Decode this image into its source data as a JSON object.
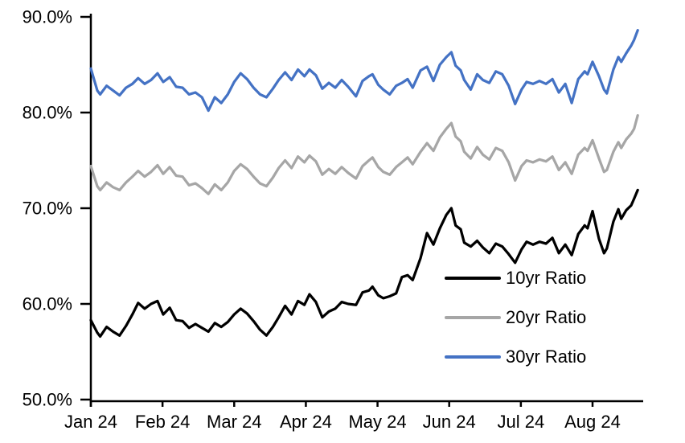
{
  "chart": {
    "background_color": "#ffffff",
    "axis_color": "#000000",
    "text_color": "#000000"
  },
  "chart_data": {
    "type": "line",
    "title": "",
    "xlabel": "",
    "ylabel": "",
    "grid": false,
    "legend_position": "inside-lower-right",
    "x_axis": {
      "tick_labels": [
        "Jan 24",
        "Feb 24",
        "Mar 24",
        "Apr 24",
        "May 24",
        "Jun 24",
        "Jul 24",
        "Aug 24"
      ],
      "tick_positions_months": [
        0,
        1,
        2,
        3,
        4,
        5,
        6,
        7
      ],
      "range_months": [
        0,
        7.71
      ],
      "unit": "months since Jan 2024"
    },
    "y_axis": {
      "tick_labels": [
        "90.0%",
        "80.0%",
        "70.0%",
        "60.0%",
        "50.0%"
      ],
      "tick_values": [
        90,
        80,
        70,
        60,
        50
      ],
      "range": [
        50,
        90
      ],
      "format": "percent"
    },
    "x_months": [
      0.0,
      0.09,
      0.13,
      0.22,
      0.31,
      0.4,
      0.49,
      0.58,
      0.66,
      0.75,
      0.84,
      0.93,
      1.01,
      1.1,
      1.19,
      1.28,
      1.37,
      1.46,
      1.55,
      1.64,
      1.73,
      1.82,
      1.91,
      2.0,
      2.09,
      2.18,
      2.27,
      2.36,
      2.45,
      2.54,
      2.62,
      2.71,
      2.8,
      2.89,
      2.98,
      3.05,
      3.14,
      3.23,
      3.32,
      3.41,
      3.5,
      3.59,
      3.7,
      3.79,
      3.88,
      3.93,
      4.01,
      4.08,
      4.17,
      4.26,
      4.34,
      4.42,
      4.49,
      4.6,
      4.69,
      4.78,
      4.87,
      4.96,
      5.03,
      5.09,
      5.16,
      5.21,
      5.3,
      5.39,
      5.47,
      5.56,
      5.65,
      5.74,
      5.83,
      5.92,
      6.01,
      6.08,
      6.17,
      6.26,
      6.35,
      6.44,
      6.53,
      6.62,
      6.71,
      6.8,
      6.89,
      6.93,
      7.0,
      7.09,
      7.16,
      7.2,
      7.29,
      7.36,
      7.4,
      7.47,
      7.54,
      7.58,
      7.63
    ],
    "series": [
      {
        "name": "10yr Ratio",
        "color": "#000000",
        "values": [
          58.3,
          57.0,
          56.6,
          57.6,
          57.1,
          56.7,
          57.7,
          58.9,
          60.1,
          59.5,
          60.0,
          60.3,
          58.9,
          59.6,
          58.3,
          58.2,
          57.5,
          57.9,
          57.5,
          57.1,
          58.0,
          57.6,
          58.1,
          58.9,
          59.5,
          59.0,
          58.2,
          57.3,
          56.7,
          57.6,
          58.6,
          59.8,
          58.9,
          60.3,
          59.9,
          61.0,
          60.2,
          58.6,
          59.2,
          59.5,
          60.2,
          60.0,
          59.9,
          61.2,
          61.4,
          61.8,
          60.9,
          60.6,
          60.8,
          61.1,
          62.8,
          63.0,
          62.5,
          64.8,
          67.4,
          66.2,
          67.9,
          69.3,
          70.0,
          68.2,
          67.8,
          66.4,
          66.0,
          66.6,
          65.9,
          65.3,
          66.3,
          66.0,
          65.2,
          64.3,
          65.7,
          66.5,
          66.2,
          66.5,
          66.3,
          66.9,
          65.3,
          66.2,
          65.1,
          67.3,
          68.2,
          67.9,
          69.7,
          66.8,
          65.3,
          65.8,
          68.6,
          69.9,
          68.9,
          69.8,
          70.3,
          71.0,
          71.9
        ]
      },
      {
        "name": "20yr Ratio",
        "color": "#A6A6A6",
        "values": [
          74.4,
          72.3,
          71.9,
          72.7,
          72.2,
          71.9,
          72.7,
          73.3,
          73.9,
          73.3,
          73.8,
          74.5,
          73.6,
          74.3,
          73.4,
          73.3,
          72.4,
          72.6,
          72.1,
          71.5,
          72.5,
          71.9,
          72.7,
          73.9,
          74.6,
          74.1,
          73.3,
          72.6,
          72.3,
          73.2,
          74.2,
          75.0,
          74.2,
          75.4,
          74.8,
          75.5,
          74.9,
          73.5,
          74.1,
          73.6,
          74.3,
          73.7,
          73.1,
          74.4,
          75.0,
          75.3,
          74.3,
          73.8,
          73.5,
          74.3,
          74.8,
          75.3,
          74.6,
          75.9,
          76.8,
          76.0,
          77.4,
          78.3,
          78.9,
          77.5,
          77.0,
          75.9,
          75.2,
          76.4,
          75.6,
          75.1,
          76.3,
          76.0,
          74.8,
          72.9,
          74.4,
          75.0,
          74.8,
          75.1,
          74.9,
          75.4,
          74.0,
          74.8,
          73.6,
          75.6,
          76.3,
          76.0,
          77.1,
          75.2,
          73.8,
          74.0,
          75.9,
          76.9,
          76.3,
          77.2,
          77.8,
          78.3,
          79.7
        ]
      },
      {
        "name": "30yr Ratio",
        "color": "#4472C4",
        "values": [
          84.6,
          82.3,
          81.9,
          82.8,
          82.3,
          81.8,
          82.6,
          83.0,
          83.6,
          83.0,
          83.4,
          84.1,
          83.2,
          83.7,
          82.7,
          82.6,
          81.9,
          82.1,
          81.6,
          80.2,
          81.6,
          81.0,
          81.9,
          83.2,
          84.1,
          83.5,
          82.6,
          81.9,
          81.6,
          82.5,
          83.4,
          84.2,
          83.4,
          84.5,
          83.8,
          84.5,
          83.9,
          82.5,
          83.1,
          82.6,
          83.4,
          82.7,
          81.7,
          83.3,
          83.8,
          84.0,
          82.9,
          82.4,
          81.9,
          82.8,
          83.1,
          83.5,
          82.6,
          84.4,
          84.8,
          83.3,
          85.0,
          85.8,
          86.3,
          84.9,
          84.4,
          83.4,
          82.4,
          84.0,
          83.4,
          83.1,
          84.3,
          84.0,
          82.8,
          80.9,
          82.4,
          83.2,
          83.0,
          83.3,
          83.0,
          83.5,
          82.1,
          83.0,
          81.0,
          83.5,
          84.3,
          84.0,
          85.3,
          83.8,
          82.4,
          82.0,
          84.5,
          85.8,
          85.3,
          86.2,
          87.0,
          87.6,
          88.6
        ]
      }
    ]
  }
}
